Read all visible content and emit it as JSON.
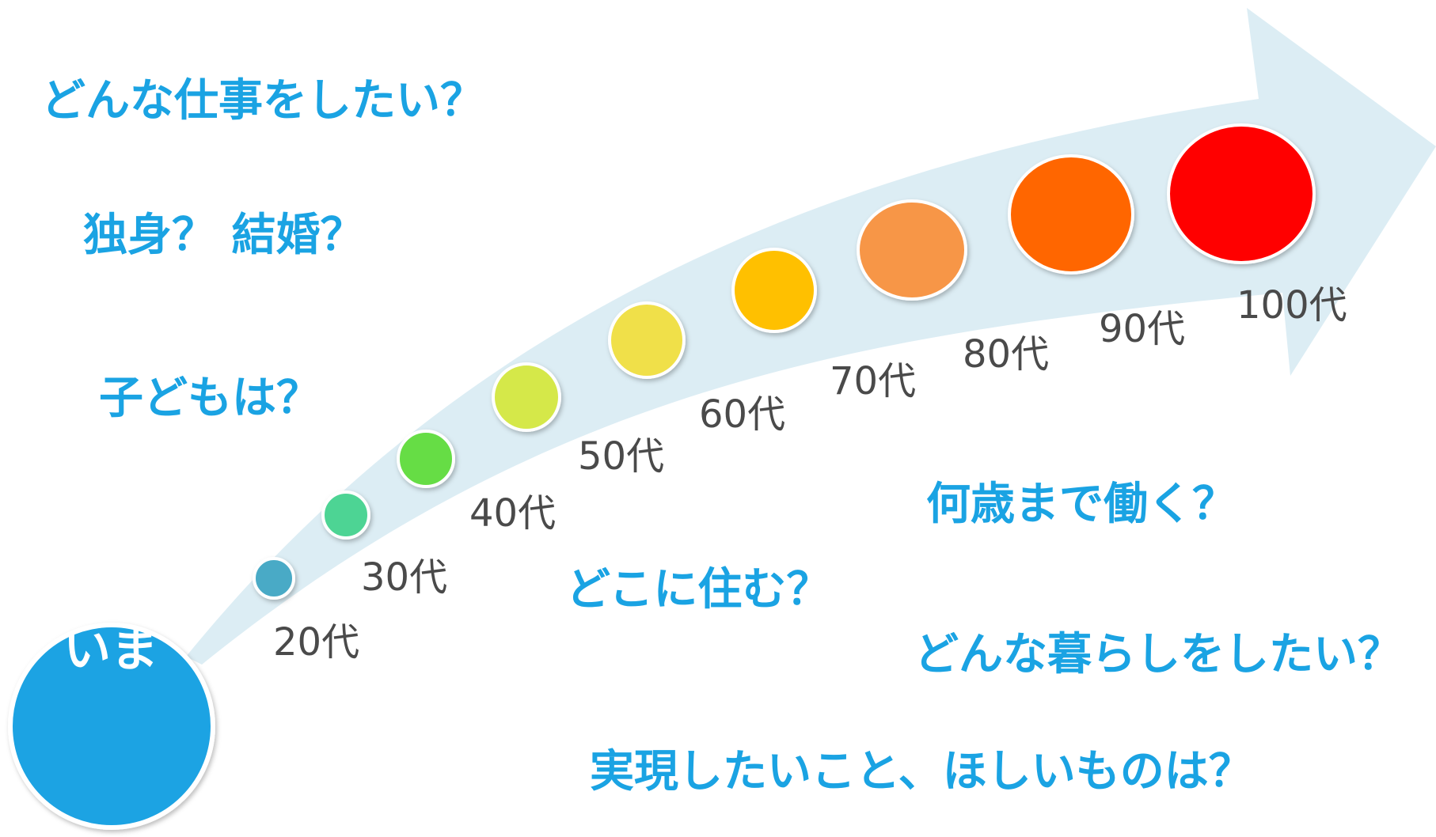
{
  "questions": {
    "work": "どんな仕事をしたい？",
    "marriage": "独身？ 結婚？",
    "children": "子どもは？",
    "residence": "どこに住む？",
    "retirement_age": "何歳まで働く？",
    "lifestyle": "どんな暮らしをしたい？",
    "wishes": "実現したいこと、ほしいものは？"
  },
  "start": {
    "label": "いま",
    "color": "#1aa3e3"
  },
  "arrow_color": "#dcedf4",
  "stages": [
    {
      "label": "20代",
      "color": "#4aaac6"
    },
    {
      "label": "30代",
      "color": "#4dd494"
    },
    {
      "label": "40代",
      "color": "#66dd44"
    },
    {
      "label": "50代",
      "color": "#d5e84a"
    },
    {
      "label": "60代",
      "color": "#f0e04a"
    },
    {
      "label": "70代",
      "color": "#ffc000"
    },
    {
      "label": "80代",
      "color": "#f79646"
    },
    {
      "label": "90代",
      "color": "#ff6600"
    },
    {
      "label": "100代",
      "color": "#ff0000"
    }
  ]
}
